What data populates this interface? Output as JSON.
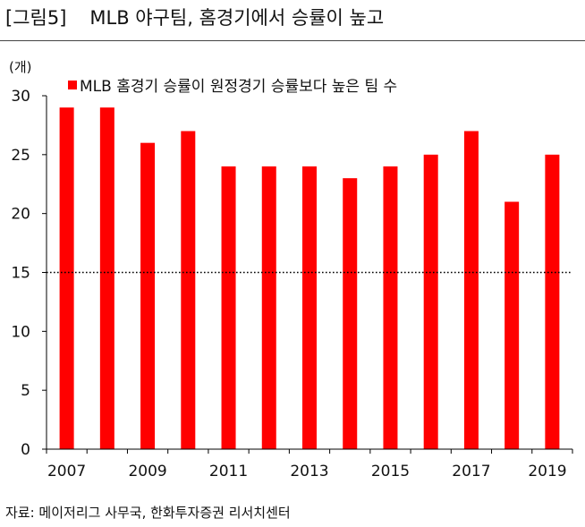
{
  "header": {
    "figure_number": "[그림5]",
    "figure_title": "MLB 야구팀, 홈경기에서 승률이 높고"
  },
  "footer": {
    "source": "자료: 메이저리그 사무국, 한화투자증권 리서치센터"
  },
  "colors": {
    "bar": "#ff0000",
    "axis": "#000000",
    "reference_line": "#000000"
  },
  "chart_data": {
    "type": "bar",
    "unit_label": "(개)",
    "title": "",
    "xlabel": "",
    "ylabel": "",
    "categories": [
      "2007",
      "2008",
      "2009",
      "2010",
      "2011",
      "2012",
      "2013",
      "2014",
      "2015",
      "2016",
      "2017",
      "2018",
      "2019"
    ],
    "x_tick_labels": [
      "2007",
      "2009",
      "2011",
      "2013",
      "2015",
      "2017",
      "2019"
    ],
    "series": [
      {
        "name": "MLB 홈경기 승률이 원정경기 승률보다 높은 팀 수",
        "values": [
          29,
          29,
          26,
          27,
          24,
          24,
          24,
          23,
          24,
          25,
          27,
          21,
          25
        ]
      }
    ],
    "ylim": [
      0,
      30
    ],
    "y_ticks": [
      0,
      5,
      10,
      15,
      20,
      25,
      30
    ],
    "reference_line": {
      "y": 15,
      "style": "dotted"
    },
    "grid": false,
    "legend_position": "top-left"
  }
}
